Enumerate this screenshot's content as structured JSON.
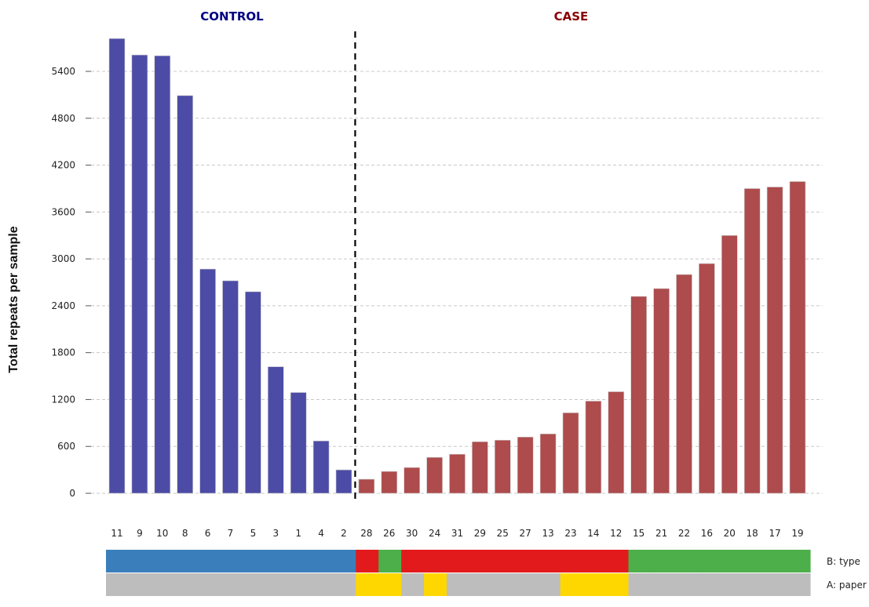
{
  "chart_data": {
    "type": "bar",
    "ylabel": "Total repeats per sample",
    "yticks": [
      0,
      600,
      1200,
      1800,
      2400,
      3000,
      3600,
      4200,
      4800,
      5400
    ],
    "ylim": [
      0,
      5900
    ],
    "grid": "horizontal dashed",
    "groups": [
      {
        "name": "CONTROL",
        "color": "#000080",
        "bar_color": "#4c4ca6"
      },
      {
        "name": "CASE",
        "color": "#8b0000",
        "bar_color": "#ae4b4c"
      }
    ],
    "categories": [
      "11",
      "9",
      "10",
      "8",
      "6",
      "7",
      "5",
      "3",
      "1",
      "4",
      "2",
      "28",
      "26",
      "30",
      "24",
      "31",
      "29",
      "25",
      "27",
      "13",
      "23",
      "14",
      "12",
      "15",
      "21",
      "22",
      "16",
      "20",
      "18",
      "17",
      "19"
    ],
    "values": [
      5820,
      5610,
      5600,
      5090,
      2870,
      2720,
      2580,
      1620,
      1290,
      670,
      300,
      180,
      280,
      330,
      460,
      500,
      660,
      680,
      720,
      760,
      1030,
      1180,
      1300,
      2520,
      2620,
      2800,
      2940,
      3300,
      3900,
      3920,
      3990
    ],
    "group_of_bar": [
      "CONTROL",
      "CONTROL",
      "CONTROL",
      "CONTROL",
      "CONTROL",
      "CONTROL",
      "CONTROL",
      "CONTROL",
      "CONTROL",
      "CONTROL",
      "CONTROL",
      "CASE",
      "CASE",
      "CASE",
      "CASE",
      "CASE",
      "CASE",
      "CASE",
      "CASE",
      "CASE",
      "CASE",
      "CASE",
      "CASE",
      "CASE",
      "CASE",
      "CASE",
      "CASE",
      "CASE",
      "CASE",
      "CASE",
      "CASE"
    ],
    "annotation_tracks": [
      {
        "label": "B: type",
        "colors": [
          "#3a7fbb",
          "#3a7fbb",
          "#3a7fbb",
          "#3a7fbb",
          "#3a7fbb",
          "#3a7fbb",
          "#3a7fbb",
          "#3a7fbb",
          "#3a7fbb",
          "#3a7fbb",
          "#3a7fbb",
          "#e31a1c",
          "#4daf4a",
          "#e31a1c",
          "#e31a1c",
          "#e31a1c",
          "#e31a1c",
          "#e31a1c",
          "#e31a1c",
          "#e31a1c",
          "#e31a1c",
          "#e31a1c",
          "#e31a1c",
          "#4daf4a",
          "#4daf4a",
          "#4daf4a",
          "#4daf4a",
          "#4daf4a",
          "#4daf4a",
          "#4daf4a",
          "#4daf4a"
        ]
      },
      {
        "label": "A: paper",
        "colors": [
          "#bdbdbd",
          "#bdbdbd",
          "#bdbdbd",
          "#bdbdbd",
          "#bdbdbd",
          "#bdbdbd",
          "#bdbdbd",
          "#bdbdbd",
          "#bdbdbd",
          "#bdbdbd",
          "#bdbdbd",
          "#ffd700",
          "#ffd700",
          "#bdbdbd",
          "#ffd700",
          "#bdbdbd",
          "#bdbdbd",
          "#bdbdbd",
          "#bdbdbd",
          "#bdbdbd",
          "#ffd700",
          "#ffd700",
          "#ffd700",
          "#bdbdbd",
          "#bdbdbd",
          "#bdbdbd",
          "#bdbdbd",
          "#bdbdbd",
          "#bdbdbd",
          "#bdbdbd",
          "#bdbdbd"
        ]
      }
    ]
  }
}
